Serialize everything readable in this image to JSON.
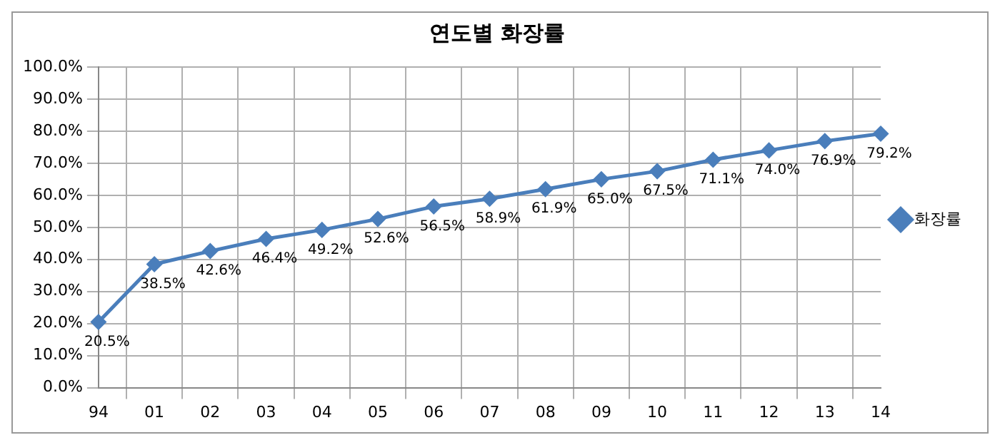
{
  "chart_data": {
    "type": "line",
    "title": "연도별 화장률",
    "categories": [
      "94",
      "01",
      "02",
      "03",
      "04",
      "05",
      "06",
      "07",
      "08",
      "09",
      "10",
      "11",
      "12",
      "13",
      "14"
    ],
    "series": [
      {
        "name": "화장률",
        "color": "#4a7ebb",
        "values": [
          20.5,
          38.5,
          42.6,
          46.4,
          49.2,
          52.6,
          56.5,
          58.9,
          61.9,
          65.0,
          67.5,
          71.1,
          74.0,
          76.9,
          79.2
        ],
        "value_labels": [
          "20.5%",
          "38.5%",
          "42.6%",
          "46.4%",
          "49.2%",
          "52.6%",
          "56.5%",
          "58.9%",
          "61.9%",
          "65.0%",
          "67.5%",
          "71.1%",
          "74.0%",
          "76.9%",
          "79.2%"
        ]
      }
    ],
    "ylim": [
      0,
      100
    ],
    "yticks": [
      {
        "value": 0,
        "label": "0.0%"
      },
      {
        "value": 10,
        "label": "10.0%"
      },
      {
        "value": 20,
        "label": "20.0%"
      },
      {
        "value": 30,
        "label": "30.0%"
      },
      {
        "value": 40,
        "label": "40.0%"
      },
      {
        "value": 50,
        "label": "50.0%"
      },
      {
        "value": 60,
        "label": "60.0%"
      },
      {
        "value": 70,
        "label": "70.0%"
      },
      {
        "value": 80,
        "label": "80.0%"
      },
      {
        "value": 90,
        "label": "90.0%"
      },
      {
        "value": 100,
        "label": "100.0%"
      }
    ],
    "grid": true,
    "legend": "right",
    "marker": "diamond",
    "line_style": "solid"
  }
}
